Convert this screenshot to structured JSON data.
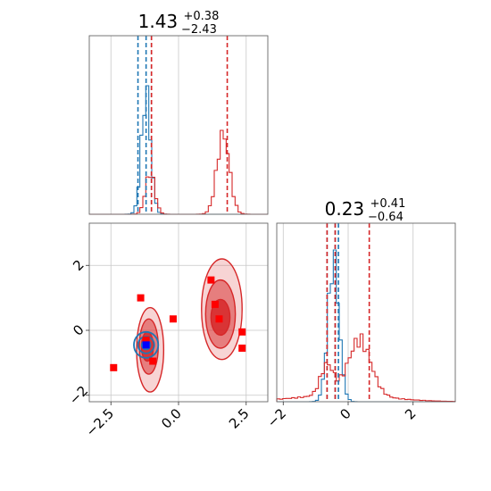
{
  "chart_data": {
    "type": "corner",
    "panels": [
      {
        "id": "hist-param1",
        "type": "histogram",
        "title": {
          "median": "1.43",
          "upper": "+0.38",
          "lower": "−2.43"
        },
        "xlim": [
          -3.3,
          3.3
        ],
        "gridlines_x": [
          -2.5,
          0.0,
          2.5
        ],
        "show_tick_labels": false,
        "series": [
          {
            "color": "#1f77b4",
            "peak_count": 0.72,
            "components": [
              {
                "center": -1.2,
                "sigma": 0.17,
                "weight": 1.0
              }
            ]
          },
          {
            "color": "#d62728",
            "peak_count": 0.47,
            "components": [
              {
                "center": -1.05,
                "sigma": 0.17,
                "weight": 0.52
              },
              {
                "center": 1.65,
                "sigma": 0.23,
                "weight": 1.0
              }
            ]
          }
        ],
        "vlines": [
          {
            "x": -1.5,
            "color": "#1f77b4"
          },
          {
            "x": -1.2,
            "color": "#1f77b4"
          },
          {
            "x": -1.0,
            "color": "#1f77b4"
          },
          {
            "x": -1.0,
            "color": "#d62728"
          },
          {
            "x": 1.8,
            "color": "#d62728"
          }
        ]
      },
      {
        "id": "hist-param2",
        "type": "histogram",
        "title": {
          "median": "0.23",
          "upper": "+0.41",
          "lower": "−0.64"
        },
        "xlim": [
          -2.2,
          3.3
        ],
        "xticks": [
          -2,
          0,
          2
        ],
        "xtick_labels": [
          "−2",
          "0",
          "2"
        ],
        "gridlines_x": [
          -2,
          0,
          2
        ],
        "series": [
          {
            "color": "#1f77b4",
            "peak_count": 0.85,
            "components": [
              {
                "center": -0.45,
                "sigma": 0.17,
                "weight": 1.0
              }
            ]
          },
          {
            "color": "#d62728",
            "peak_count": 0.38,
            "components": [
              {
                "center": -0.65,
                "sigma": 0.2,
                "weight": 0.55
              },
              {
                "center": 0.35,
                "sigma": 0.35,
                "weight": 1.0
              },
              {
                "center": -0.2,
                "sigma": 1.4,
                "weight": 0.12
              }
            ]
          }
        ],
        "vlines": [
          {
            "x": -0.65,
            "color": "#1f77b4"
          },
          {
            "x": -0.4,
            "color": "#1f77b4"
          },
          {
            "x": -0.3,
            "color": "#1f77b4"
          },
          {
            "x": -0.65,
            "color": "#d62728"
          },
          {
            "x": -0.4,
            "color": "#d62728"
          },
          {
            "x": 0.65,
            "color": "#d62728"
          }
        ]
      },
      {
        "id": "scatter-2d",
        "type": "scatter",
        "xlim": [
          -3.3,
          3.3
        ],
        "ylim": [
          -2.2,
          3.3
        ],
        "xticks": [
          -2.5,
          0.0,
          2.5
        ],
        "xtick_labels": [
          "−2.5",
          "0.0",
          "2.5"
        ],
        "yticks": [
          -2,
          0,
          2
        ],
        "ytick_labels": [
          "−2",
          "0",
          "2"
        ],
        "gridlines_x": [
          -2.5,
          0.0,
          2.5
        ],
        "gridlines_y": [
          -2,
          0,
          2
        ],
        "red_contours": [
          {
            "cx": -1.05,
            "cy": -0.6,
            "rx": 0.5,
            "ry": 1.3,
            "opacity": 0.2
          },
          {
            "cx": -1.1,
            "cy": -0.5,
            "rx": 0.35,
            "ry": 0.85,
            "opacity": 0.5
          },
          {
            "cx": -1.15,
            "cy": -0.5,
            "rx": 0.22,
            "ry": 0.45,
            "opacity": 0.85
          },
          {
            "cx": 1.6,
            "cy": 0.65,
            "rx": 0.75,
            "ry": 1.55,
            "opacity": 0.2
          },
          {
            "cx": 1.55,
            "cy": 0.5,
            "rx": 0.55,
            "ry": 1.05,
            "opacity": 0.5
          },
          {
            "cx": 1.55,
            "cy": 0.4,
            "rx": 0.35,
            "ry": 0.55,
            "opacity": 0.85
          }
        ],
        "blue_contours": [
          {
            "cx": -1.2,
            "cy": -0.45,
            "rx": 0.45,
            "ry": 0.4
          },
          {
            "cx": -1.2,
            "cy": -0.45,
            "rx": 0.3,
            "ry": 0.26
          },
          {
            "cx": -1.2,
            "cy": -0.45,
            "rx": 0.16,
            "ry": 0.14
          }
        ],
        "red_points": [
          [
            -1.4,
            1.0
          ],
          [
            -0.2,
            0.35
          ],
          [
            1.2,
            1.55
          ],
          [
            1.35,
            0.8
          ],
          [
            1.5,
            0.35
          ],
          [
            -1.2,
            -0.3
          ],
          [
            -0.95,
            -0.95
          ],
          [
            2.35,
            -0.05
          ],
          [
            2.35,
            -0.55
          ],
          [
            -2.4,
            -1.15
          ]
        ],
        "blue_points": [
          [
            -1.2,
            -0.45
          ]
        ],
        "colors": {
          "red": "#d62728",
          "blue": "#1f77b4",
          "marker_red": "#ff0000",
          "marker_blue": "#0000ff"
        }
      }
    ]
  }
}
